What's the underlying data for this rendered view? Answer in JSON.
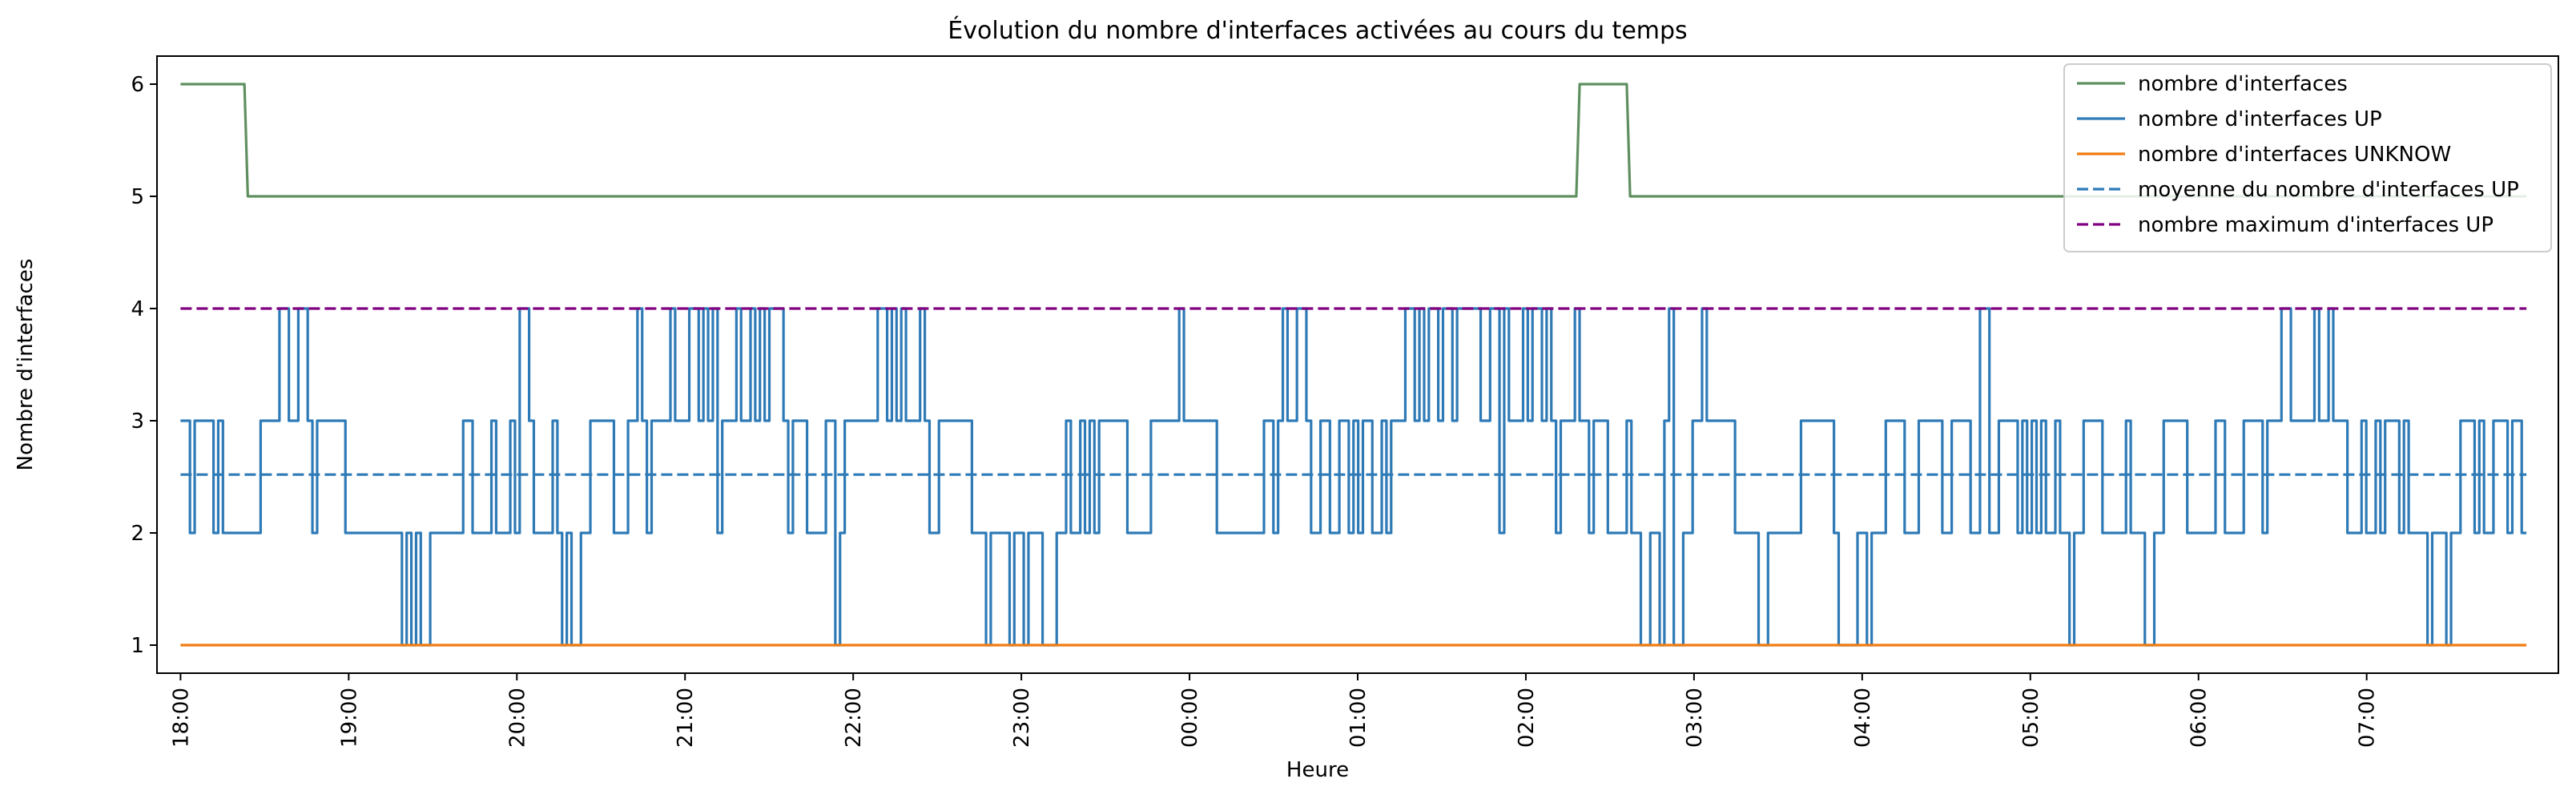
{
  "chart_data": {
    "type": "line",
    "title": "Évolution du nombre d'interfaces activées au cours du temps",
    "xlabel": "Heure",
    "ylabel": "Nombre d'interfaces",
    "x_unit": "hours since 18:00",
    "xlim": [
      -0.14,
      14.14
    ],
    "ylim": [
      0.75,
      6.25
    ],
    "x_ticks": [
      0,
      1,
      2,
      3,
      4,
      5,
      6,
      7,
      8,
      9,
      10,
      11,
      12,
      13
    ],
    "x_tick_labels": [
      "18:00",
      "19:00",
      "20:00",
      "21:00",
      "22:00",
      "23:00",
      "00:00",
      "01:00",
      "02:00",
      "03:00",
      "04:00",
      "05:00",
      "06:00",
      "07:00"
    ],
    "y_ticks": [
      1,
      2,
      3,
      4,
      5,
      6
    ],
    "y_tick_labels": [
      "1",
      "2",
      "3",
      "4",
      "5",
      "6"
    ],
    "grid": false,
    "legend_position": "top-right",
    "series": [
      {
        "name": "nombre d'interfaces",
        "color": "#5f8f5f",
        "style": "solid",
        "points": [
          [
            0,
            6
          ],
          [
            0.38,
            6
          ],
          [
            0.4,
            5
          ],
          [
            8.3,
            5
          ],
          [
            8.32,
            6
          ],
          [
            8.6,
            6
          ],
          [
            8.62,
            5
          ],
          [
            13.95,
            5
          ]
        ]
      },
      {
        "name": "nombre d'interfaces UP",
        "color": "#2e7ab6",
        "style": "solid",
        "values": [
          3,
          3,
          2,
          3,
          3,
          3,
          3,
          2,
          3,
          2,
          2,
          2,
          2,
          2,
          2,
          2,
          2,
          3,
          3,
          3,
          3,
          4,
          4,
          3,
          3,
          4,
          4,
          3,
          2,
          3,
          3,
          3,
          3,
          3,
          3,
          2,
          2,
          2,
          2,
          2,
          2,
          2,
          2,
          2,
          2,
          2,
          2,
          1,
          2,
          1,
          2,
          1,
          1,
          2,
          2,
          2,
          2,
          2,
          2,
          2,
          3,
          3,
          2,
          2,
          2,
          2,
          3,
          2,
          2,
          2,
          3,
          2,
          4,
          4,
          3,
          2,
          2,
          2,
          2,
          3,
          2,
          1,
          2,
          1,
          1,
          2,
          2,
          3,
          3,
          3,
          3,
          3,
          2,
          2,
          2,
          3,
          3,
          4,
          3,
          2,
          3,
          3,
          3,
          3,
          4,
          3,
          3,
          3,
          4,
          4,
          3,
          4,
          3,
          4,
          2,
          3,
          3,
          3,
          4,
          3,
          3,
          4,
          3,
          4,
          3,
          4,
          4,
          4,
          3,
          2,
          3,
          3,
          3,
          2,
          2,
          2,
          2,
          3,
          3,
          1,
          2,
          3,
          3,
          3,
          3,
          3,
          3,
          3,
          4,
          4,
          3,
          4,
          3,
          4,
          3,
          3,
          3,
          4,
          3,
          2,
          2,
          3,
          3,
          3,
          3,
          3,
          3,
          3,
          2,
          2,
          2,
          1,
          2,
          2,
          2,
          2,
          1,
          2,
          2,
          1,
          2,
          2,
          2,
          1,
          1,
          1,
          2,
          2,
          3,
          2,
          2,
          3,
          2,
          3,
          2,
          3,
          3,
          3,
          3,
          3,
          3,
          2,
          2,
          2,
          2,
          2,
          3,
          3,
          3,
          3,
          3,
          3,
          4,
          3,
          3,
          3,
          3,
          3,
          3,
          3,
          2,
          2,
          2,
          2,
          2,
          2,
          2,
          2,
          2,
          2,
          3,
          3,
          2,
          3,
          4,
          3,
          3,
          4,
          4,
          3,
          2,
          2,
          3,
          3,
          2,
          2,
          3,
          3,
          2,
          3,
          2,
          3,
          3,
          2,
          2,
          3,
          2,
          3,
          3,
          3,
          4,
          4,
          3,
          4,
          3,
          4,
          4,
          3,
          4,
          4,
          3,
          4,
          4,
          4,
          4,
          4,
          3,
          3,
          4,
          4,
          2,
          4,
          3,
          3,
          3,
          4,
          3,
          4,
          4,
          3,
          4,
          3,
          2,
          3,
          3,
          3,
          4,
          3,
          3,
          2,
          3,
          3,
          3,
          2,
          2,
          2,
          2,
          3,
          2,
          2,
          1,
          1,
          2,
          2,
          1,
          3,
          4,
          1,
          1,
          2,
          2,
          3,
          3,
          4,
          3,
          3,
          3,
          3,
          3,
          3,
          2,
          2,
          2,
          2,
          2,
          1,
          1,
          2,
          2,
          2,
          2,
          2,
          2,
          2,
          3,
          3,
          3,
          3,
          3,
          3,
          3,
          2,
          1,
          1,
          1,
          1,
          2,
          2,
          1,
          2,
          2,
          2,
          3,
          3,
          3,
          3,
          2,
          2,
          2,
          3,
          3,
          3,
          3,
          3,
          2,
          2,
          3,
          3,
          3,
          3,
          2,
          2,
          4,
          4,
          2,
          2,
          3,
          3,
          3,
          3,
          2,
          3,
          2,
          3,
          2,
          3,
          2,
          2,
          3,
          2,
          2,
          1,
          2,
          2,
          3,
          3,
          3,
          3,
          2,
          2,
          2,
          2,
          2,
          3,
          2,
          2,
          2,
          1,
          1,
          2,
          2,
          3,
          3,
          3,
          3,
          3,
          2,
          2,
          2,
          2,
          2,
          2,
          3,
          3,
          2,
          2,
          2,
          2,
          3,
          3,
          3,
          3,
          2,
          3,
          3,
          3,
          4,
          4,
          3,
          3,
          3,
          3,
          3,
          4,
          3,
          3,
          4,
          3,
          3,
          3,
          2,
          2,
          2,
          3,
          2,
          2,
          3,
          2,
          3,
          3,
          3,
          2,
          3,
          2,
          2,
          2,
          2,
          1,
          2,
          2,
          2,
          1,
          2,
          2,
          3,
          3,
          3,
          2,
          3,
          2,
          2,
          3,
          3,
          3,
          2,
          3,
          3,
          2,
          2
        ],
        "x_start": 0,
        "x_end": 13.95
      },
      {
        "name": "nombre d'interfaces UNKNOW",
        "color": "#f07c12",
        "style": "solid",
        "points": [
          [
            0,
            1
          ],
          [
            13.95,
            1
          ]
        ]
      },
      {
        "name": "moyenne du nombre d'interfaces UP",
        "color": "#2e7ab6",
        "style": "dashed",
        "points": [
          [
            0,
            2.52
          ],
          [
            13.95,
            2.52
          ]
        ]
      },
      {
        "name": "nombre maximum d'interfaces UP",
        "color": "#800080",
        "style": "dashed",
        "points": [
          [
            0,
            4
          ],
          [
            13.95,
            4
          ]
        ]
      }
    ]
  }
}
